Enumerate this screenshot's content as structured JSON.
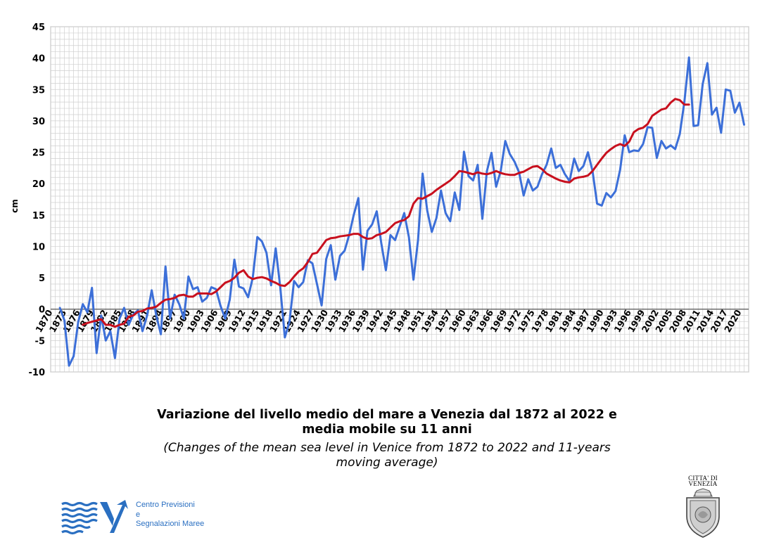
{
  "chart_data": {
    "type": "line",
    "title": "Variazione del livello medio del mare a Venezia dal 1872 al 2022 e media mobile su 11 anni",
    "subtitle": "(Changes of the mean sea level in Venice from 1872 to 2022 and 11-years moving average)",
    "title_lines": [
      "Variazione del livello medio del mare a Venezia dal 1872 al 2022 e",
      "media mobile su 11 anni"
    ],
    "subtitle_lines": [
      "(Changes of the mean sea level in Venice from 1872 to 2022 and 11-years",
      "moving average)"
    ],
    "ylabel": "cm",
    "xlabel": "",
    "ylim": [
      -10,
      45
    ],
    "yticks": [
      "45",
      "40",
      "35",
      "30",
      "25",
      "20",
      "15",
      "10",
      "5",
      "0",
      "-5",
      "-10"
    ],
    "xlim": [
      1870,
      2022
    ],
    "xticks": [
      "1870",
      "1873",
      "1876",
      "1879",
      "1882",
      "1885",
      "1888",
      "1891",
      "1894",
      "1897",
      "1900",
      "1903",
      "1906",
      "1909",
      "1912",
      "1915",
      "1918",
      "1921",
      "1924",
      "1927",
      "1930",
      "1933",
      "1936",
      "1939",
      "1942",
      "1945",
      "1948",
      "1951",
      "1954",
      "1957",
      "1960",
      "1963",
      "1966",
      "1969",
      "1972",
      "1975",
      "1978",
      "1981",
      "1984",
      "1987",
      "1990",
      "1993",
      "1996",
      "1999",
      "2002",
      "2005",
      "2008",
      "2011",
      "2014",
      "2017",
      "2020"
    ],
    "grid": true,
    "colors": {
      "annual": "#3c6fd8",
      "moving_average": "#c8101e",
      "grid": "#cfcfcf",
      "zero_line": "#555555"
    },
    "series": [
      {
        "role": "annual",
        "x_start": 1872,
        "values": [
          0.2,
          -1.8,
          -9.0,
          -7.5,
          -2.0,
          0.8,
          -0.5,
          3.4,
          -7.0,
          -1.0,
          -5.0,
          -3.5,
          -7.8,
          -1.5,
          0.2,
          -2.5,
          -0.8,
          -0.2,
          -3.5,
          -1.0,
          3.0,
          -1.0,
          -4.0,
          6.8,
          -1.5,
          2.3,
          0.8,
          -1.5,
          5.2,
          3.2,
          3.5,
          1.2,
          1.8,
          3.5,
          3.2,
          0.5,
          -1.5,
          1.5,
          7.9,
          3.6,
          3.3,
          1.9,
          5.0,
          11.5,
          10.8,
          9.0,
          3.8,
          9.7,
          3.5,
          -4.5,
          -2.0,
          4.5,
          3.5,
          4.3,
          7.8,
          7.3,
          4.0,
          0.6,
          8.0,
          10.2,
          4.7,
          8.5,
          9.3,
          11.8,
          15.0,
          17.7,
          6.3,
          12.5,
          13.5,
          15.6,
          10.5,
          6.2,
          11.8,
          11.0,
          13.2,
          15.3,
          11.5,
          4.7,
          11.0,
          21.6,
          15.7,
          12.3,
          14.5,
          18.9,
          15.3,
          14.0,
          18.6,
          15.8,
          25.1,
          21.2,
          20.5,
          23.0,
          14.4,
          22.0,
          24.9,
          19.5,
          22.0,
          26.8,
          24.7,
          23.5,
          21.8,
          18.1,
          20.7,
          18.9,
          19.5,
          21.5,
          23.0,
          25.6,
          22.5,
          23.0,
          21.5,
          20.4,
          24.0,
          22.0,
          22.8,
          25.0,
          22.0,
          16.8,
          16.5,
          18.5,
          17.8,
          18.8,
          22.2,
          27.7,
          25.0,
          25.3,
          25.2,
          26.3,
          29.0,
          28.9,
          24.1,
          26.8,
          25.6,
          26.1,
          25.5,
          27.9,
          33.0,
          40.1,
          29.2,
          29.3,
          35.9,
          39.2,
          31.0,
          32.1,
          28.1,
          35.0,
          34.8,
          31.3,
          32.9,
          29.4
        ]
      },
      {
        "role": "moving_average",
        "x_start": 1877,
        "values": [
          -2.5,
          -2.2,
          -2.0,
          -1.8,
          -1.6,
          -2.5,
          -2.5,
          -2.8,
          -2.5,
          -2.3,
          -1.2,
          -1.0,
          -0.4,
          -0.3,
          0.1,
          0.2,
          0.4,
          1.0,
          1.5,
          1.6,
          1.8,
          2.2,
          2.3,
          2.0,
          2.0,
          2.5,
          2.5,
          2.5,
          2.4,
          2.8,
          3.5,
          4.2,
          4.5,
          5.0,
          5.8,
          6.2,
          5.2,
          4.8,
          5.0,
          5.1,
          4.9,
          4.5,
          4.2,
          3.8,
          3.7,
          4.3,
          5.2,
          6.0,
          6.5,
          7.5,
          8.8,
          9.0,
          10.0,
          11.0,
          11.3,
          11.4,
          11.6,
          11.7,
          11.8,
          12.0,
          12.0,
          11.5,
          11.2,
          11.3,
          11.8,
          12.0,
          12.3,
          13.0,
          13.7,
          14.0,
          14.2,
          14.8,
          16.8,
          17.7,
          17.6,
          18.0,
          18.4,
          19.0,
          19.5,
          20.0,
          20.5,
          21.2,
          22.0,
          21.9,
          21.7,
          21.5,
          21.8,
          21.6,
          21.5,
          21.7,
          22.0,
          21.7,
          21.5,
          21.4,
          21.4,
          21.7,
          21.9,
          22.3,
          22.7,
          22.8,
          22.3,
          21.6,
          21.2,
          20.8,
          20.5,
          20.3,
          20.2,
          20.8,
          21.0,
          21.1,
          21.3,
          22.0,
          23.0,
          24.0,
          24.9,
          25.5,
          26.0,
          26.3,
          26.0,
          26.7,
          28.2,
          28.7,
          28.9,
          29.5,
          30.8,
          31.3,
          31.8,
          32.0,
          32.9,
          33.5,
          33.3,
          32.6,
          32.6
        ]
      }
    ]
  },
  "logos": {
    "cpsm": {
      "line1": "Centro Previsioni",
      "line2": "e",
      "line3": "Segnalazioni Maree",
      "color": "#2a6fc1"
    },
    "venezia": {
      "line1": "CITTA' DI",
      "line2": "VENEZIA"
    }
  }
}
